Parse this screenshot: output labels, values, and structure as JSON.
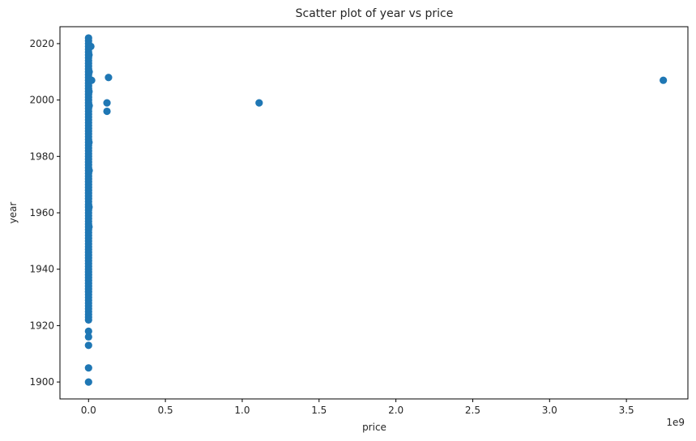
{
  "chart_data": {
    "type": "scatter",
    "title": "Scatter plot of year vs price",
    "xlabel": "price",
    "ylabel": "year",
    "x_offset_label": "1e9",
    "xlim": [
      -0.186,
      3.9
    ],
    "ylim": [
      1894,
      2026
    ],
    "xticks": [
      0.0,
      0.5,
      1.0,
      1.5,
      2.0,
      2.5,
      3.0,
      3.5
    ],
    "xtick_labels": [
      "0.0",
      "0.5",
      "1.0",
      "1.5",
      "2.0",
      "2.5",
      "3.0",
      "3.5"
    ],
    "yticks": [
      1900,
      1920,
      1940,
      1960,
      1980,
      2000,
      2020
    ],
    "ytick_labels": [
      "1900",
      "1920",
      "1940",
      "1960",
      "1980",
      "2000",
      "2020"
    ],
    "grid": false,
    "marker_color": "#1f77b4",
    "points": [
      [
        0.0,
        1900
      ],
      [
        0.0,
        1905
      ],
      [
        0.0,
        1913
      ],
      [
        0.0,
        1916
      ],
      [
        0.0,
        1918
      ],
      [
        0.0,
        1922
      ],
      [
        0.0,
        1923
      ],
      [
        0.0,
        1924
      ],
      [
        0.0,
        1925
      ],
      [
        0.0,
        1926
      ],
      [
        0.0,
        1927
      ],
      [
        0.0,
        1928
      ],
      [
        0.0,
        1929
      ],
      [
        0.0,
        1930
      ],
      [
        0.0,
        1931
      ],
      [
        0.0,
        1932
      ],
      [
        0.0,
        1933
      ],
      [
        0.0,
        1934
      ],
      [
        0.0,
        1935
      ],
      [
        0.0,
        1936
      ],
      [
        0.0,
        1937
      ],
      [
        0.0,
        1938
      ],
      [
        0.0,
        1939
      ],
      [
        0.0,
        1940
      ],
      [
        0.0,
        1941
      ],
      [
        0.0,
        1942
      ],
      [
        0.0,
        1943
      ],
      [
        0.0,
        1944
      ],
      [
        0.0,
        1945
      ],
      [
        0.0,
        1946
      ],
      [
        0.0,
        1947
      ],
      [
        0.0,
        1948
      ],
      [
        0.0,
        1949
      ],
      [
        0.0,
        1950
      ],
      [
        0.0,
        1951
      ],
      [
        0.0,
        1952
      ],
      [
        0.0,
        1953
      ],
      [
        0.0,
        1954
      ],
      [
        0.0,
        1955
      ],
      [
        0.0,
        1956
      ],
      [
        0.0,
        1957
      ],
      [
        0.0,
        1958
      ],
      [
        0.0,
        1959
      ],
      [
        0.0,
        1960
      ],
      [
        0.0,
        1961
      ],
      [
        0.0,
        1962
      ],
      [
        0.0,
        1963
      ],
      [
        0.0,
        1964
      ],
      [
        0.0,
        1965
      ],
      [
        0.0,
        1966
      ],
      [
        0.0,
        1967
      ],
      [
        0.0,
        1968
      ],
      [
        0.0,
        1969
      ],
      [
        0.0,
        1970
      ],
      [
        0.0,
        1971
      ],
      [
        0.0,
        1972
      ],
      [
        0.0,
        1973
      ],
      [
        0.0,
        1974
      ],
      [
        0.0,
        1975
      ],
      [
        0.0,
        1976
      ],
      [
        0.0,
        1977
      ],
      [
        0.0,
        1978
      ],
      [
        0.0,
        1979
      ],
      [
        0.0,
        1980
      ],
      [
        0.0,
        1981
      ],
      [
        0.0,
        1982
      ],
      [
        0.0,
        1983
      ],
      [
        0.0,
        1984
      ],
      [
        0.0,
        1985
      ],
      [
        0.0,
        1986
      ],
      [
        0.0,
        1987
      ],
      [
        0.0,
        1988
      ],
      [
        0.0,
        1989
      ],
      [
        0.0,
        1990
      ],
      [
        0.0,
        1991
      ],
      [
        0.0,
        1992
      ],
      [
        0.0,
        1993
      ],
      [
        0.0,
        1994
      ],
      [
        0.0,
        1995
      ],
      [
        0.0,
        1996
      ],
      [
        0.0,
        1997
      ],
      [
        0.0,
        1998
      ],
      [
        0.0,
        1999
      ],
      [
        0.0,
        2000
      ],
      [
        0.0,
        2001
      ],
      [
        0.0,
        2002
      ],
      [
        0.0,
        2003
      ],
      [
        0.0,
        2004
      ],
      [
        0.0,
        2005
      ],
      [
        0.0,
        2006
      ],
      [
        0.0,
        2007
      ],
      [
        0.0,
        2008
      ],
      [
        0.0,
        2009
      ],
      [
        0.0,
        2010
      ],
      [
        0.0,
        2011
      ],
      [
        0.0,
        2012
      ],
      [
        0.0,
        2013
      ],
      [
        0.0,
        2014
      ],
      [
        0.0,
        2015
      ],
      [
        0.0,
        2016
      ],
      [
        0.0,
        2017
      ],
      [
        0.0,
        2018
      ],
      [
        0.0,
        2019
      ],
      [
        0.0,
        2020
      ],
      [
        0.0,
        2021
      ],
      [
        0.0,
        2022
      ],
      [
        0.003,
        2016
      ],
      [
        0.004,
        2010
      ],
      [
        0.003,
        2003
      ],
      [
        0.004,
        1998
      ],
      [
        0.003,
        1985
      ],
      [
        0.004,
        1975
      ],
      [
        0.003,
        1962
      ],
      [
        0.003,
        1955
      ],
      [
        0.015,
        2019
      ],
      [
        0.02,
        2007
      ],
      [
        0.13,
        2008
      ],
      [
        0.12,
        1999
      ],
      [
        0.12,
        1996
      ],
      [
        1.11,
        1999
      ],
      [
        3.74,
        2007
      ]
    ]
  }
}
